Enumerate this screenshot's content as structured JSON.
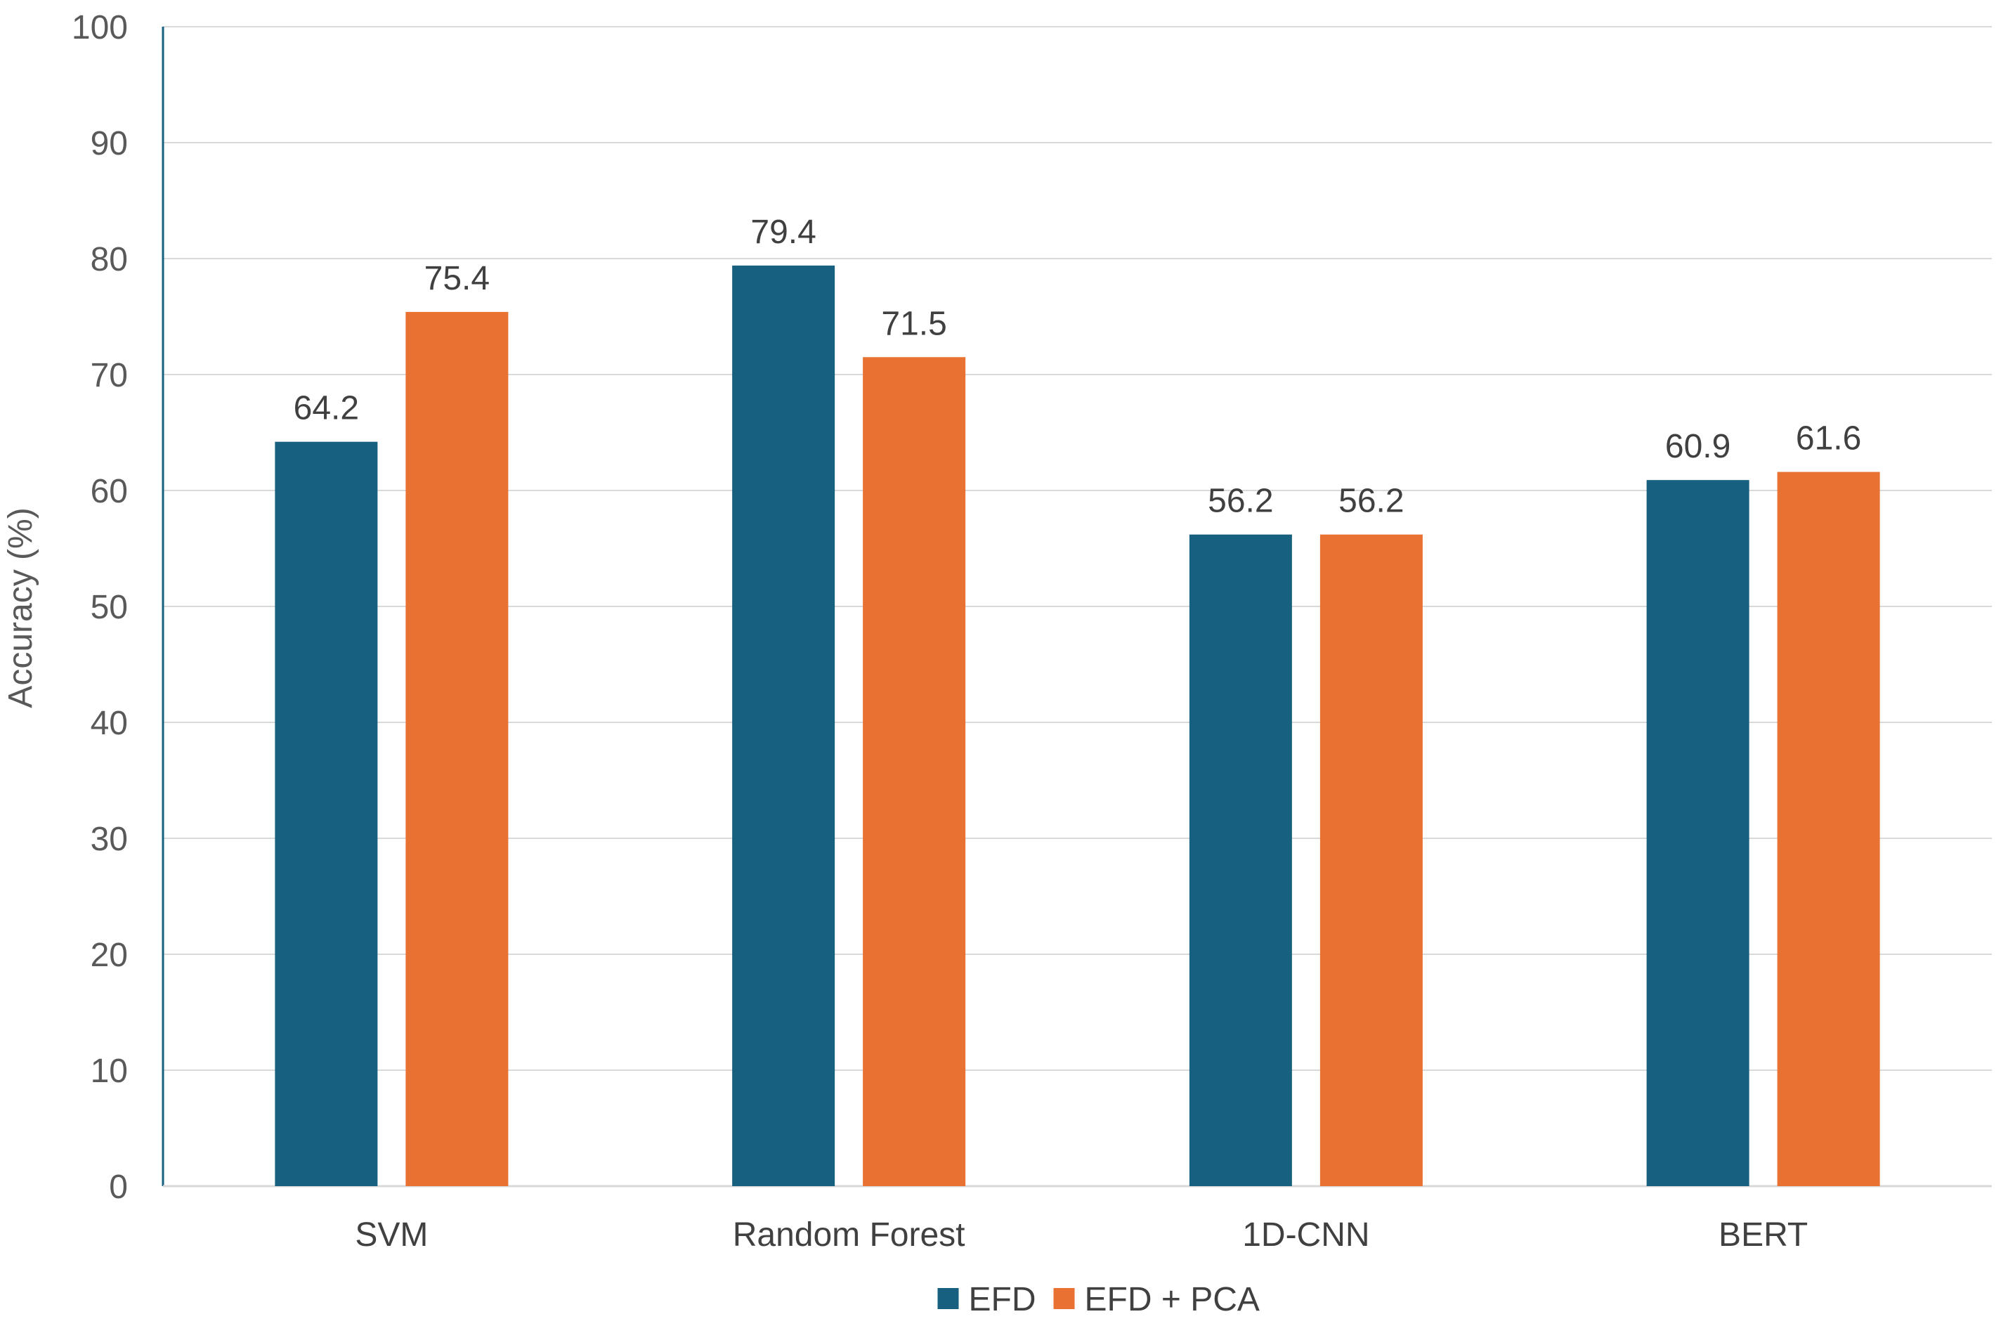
{
  "chart_data": {
    "type": "bar",
    "title": "",
    "xlabel": "",
    "ylabel": "Accuracy (%)",
    "ylim": [
      0,
      100
    ],
    "yticks": [
      0,
      10,
      20,
      30,
      40,
      50,
      60,
      70,
      80,
      90,
      100
    ],
    "grid": true,
    "legend_position": "bottom",
    "categories": [
      "SVM",
      "Random Forest",
      "1D-CNN",
      "BERT"
    ],
    "series": [
      {
        "name": "EFD",
        "color": "#17607f",
        "values": [
          64.2,
          79.4,
          56.2,
          60.9
        ]
      },
      {
        "name": "EFD + PCA",
        "color": "#e97132",
        "values": [
          75.4,
          71.5,
          56.2,
          61.6
        ]
      }
    ]
  }
}
